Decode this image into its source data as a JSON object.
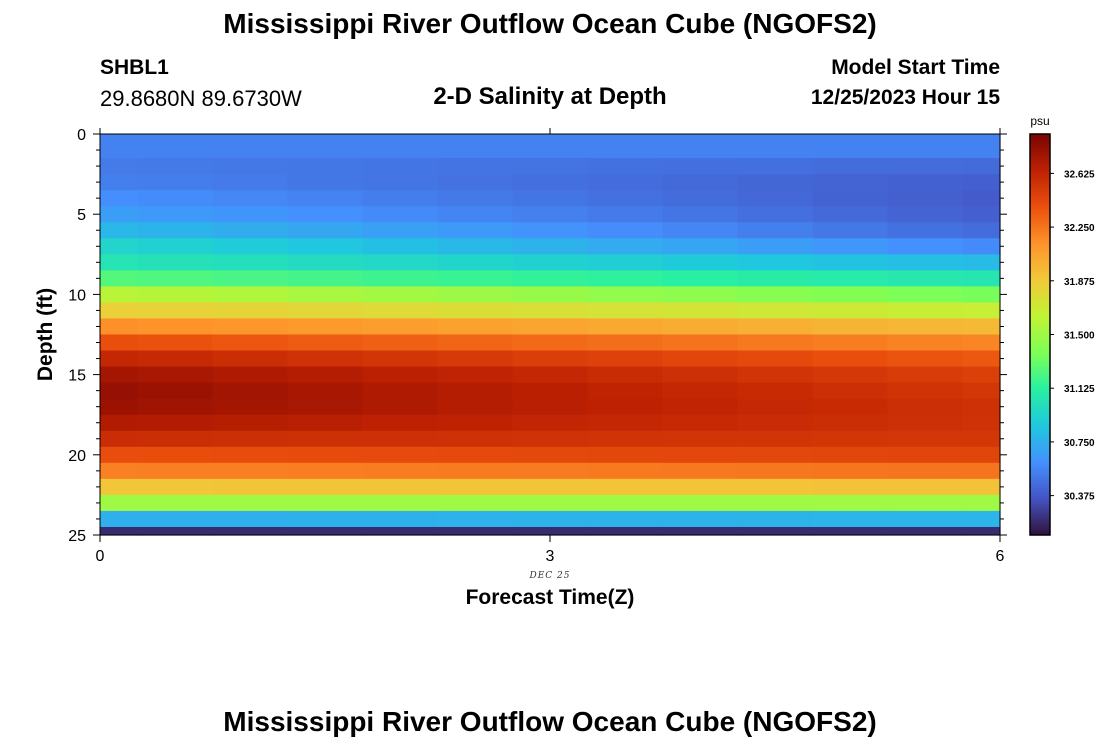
{
  "header": {
    "title": "Mississippi River Outflow Ocean Cube (NGOFS2)",
    "station_id": "SHBL1",
    "coordinates": "29.8680N  89.6730W",
    "subtitle": "2-D Salinity at Depth",
    "start_label": "Model Start Time",
    "start_value": "12/25/2023 Hour 15"
  },
  "footer": {
    "title": "Mississippi River Outflow Ocean Cube (NGOFS2)"
  },
  "chart_data": {
    "type": "heatmap",
    "title": "2-D Salinity at Depth",
    "xlabel": "Forecast Time(Z)",
    "ylabel": "Depth (ft)",
    "xlim": [
      0,
      6
    ],
    "ylim": [
      25,
      0
    ],
    "x_ticks": [
      {
        "value": 0,
        "label": "0"
      },
      {
        "value": 3,
        "label": "3"
      },
      {
        "value": 6,
        "label": "6"
      }
    ],
    "y_ticks": [
      {
        "value": 0,
        "label": "0"
      },
      {
        "value": 5,
        "label": "5"
      },
      {
        "value": 10,
        "label": "10"
      },
      {
        "value": 15,
        "label": "15"
      },
      {
        "value": 20,
        "label": "20"
      },
      {
        "value": 25,
        "label": "25"
      }
    ],
    "date_label": {
      "x": 3,
      "text": "DEC 25"
    },
    "x_edges": [
      0,
      0.25,
      0.75,
      1.25,
      1.75,
      2.25,
      2.75,
      3.25,
      3.75,
      4.25,
      4.75,
      5.25,
      5.75,
      6
    ],
    "depth_edges": [
      0,
      1.5,
      2.5,
      3.5,
      4.5,
      5.5,
      6.5,
      7.5,
      8.5,
      9.5,
      10.5,
      11.5,
      12.5,
      13.5,
      14.5,
      15.5,
      16.5,
      17.5,
      18.5,
      19.5,
      20.5,
      21.5,
      22.5,
      23.5,
      24.5,
      25
    ],
    "colorbar": {
      "units": "psu",
      "min": 30.1,
      "max": 32.9,
      "ticks": [
        30.375,
        30.75,
        31.125,
        31.5,
        31.875,
        32.25,
        32.625
      ],
      "tick_labels": [
        "30.375",
        "30.750",
        "31.125",
        "31.500",
        "31.875",
        "32.250",
        "32.625"
      ],
      "palette": [
        "#30123b",
        "#4454c4",
        "#4490fe",
        "#1fc8de",
        "#29efa2",
        "#7dff56",
        "#c1f334",
        "#f1ca3a",
        "#fe922a",
        "#ea4f0d",
        "#be2102",
        "#7a0403"
      ]
    },
    "profile_start": [
      30.55,
      30.52,
      30.54,
      30.61,
      30.68,
      30.8,
      30.95,
      31.05,
      31.25,
      31.6,
      31.85,
      32.15,
      32.4,
      32.62,
      32.75,
      32.8,
      32.78,
      32.7,
      32.58,
      32.4,
      32.2,
      31.9,
      31.5,
      30.75,
      30.2
    ],
    "profile_end": [
      30.55,
      30.45,
      30.4,
      30.38,
      30.4,
      30.45,
      30.58,
      30.8,
      31.05,
      31.35,
      31.65,
      31.95,
      32.18,
      32.35,
      32.47,
      32.52,
      32.55,
      32.55,
      32.52,
      32.45,
      32.25,
      31.92,
      31.5,
      30.78,
      30.2
    ]
  }
}
